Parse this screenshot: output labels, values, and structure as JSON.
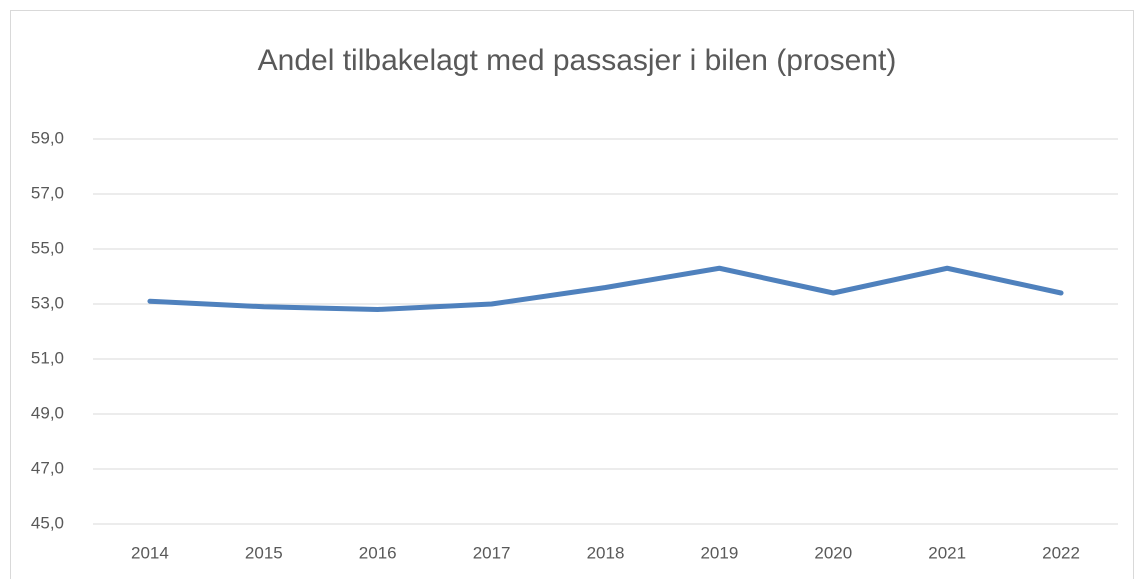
{
  "chart_data": {
    "type": "line",
    "title": "Andel tilbakelagt med passasjer i bilen (prosent)",
    "categories": [
      "2014",
      "2015",
      "2016",
      "2017",
      "2018",
      "2019",
      "2020",
      "2021",
      "2022"
    ],
    "values": [
      53.1,
      52.9,
      52.8,
      53.0,
      53.6,
      54.3,
      53.4,
      54.3,
      53.4
    ],
    "color": "#4f81bd",
    "ylim": [
      45,
      59
    ],
    "yticks": [
      {
        "value": 45,
        "label": "45,0"
      },
      {
        "value": 47,
        "label": "47,0"
      },
      {
        "value": 49,
        "label": "49,0"
      },
      {
        "value": 51,
        "label": "51,0"
      },
      {
        "value": 53,
        "label": "53,0"
      },
      {
        "value": 55,
        "label": "55,0"
      },
      {
        "value": 57,
        "label": "57,0"
      },
      {
        "value": 59,
        "label": "59,0"
      }
    ],
    "grid": true
  }
}
